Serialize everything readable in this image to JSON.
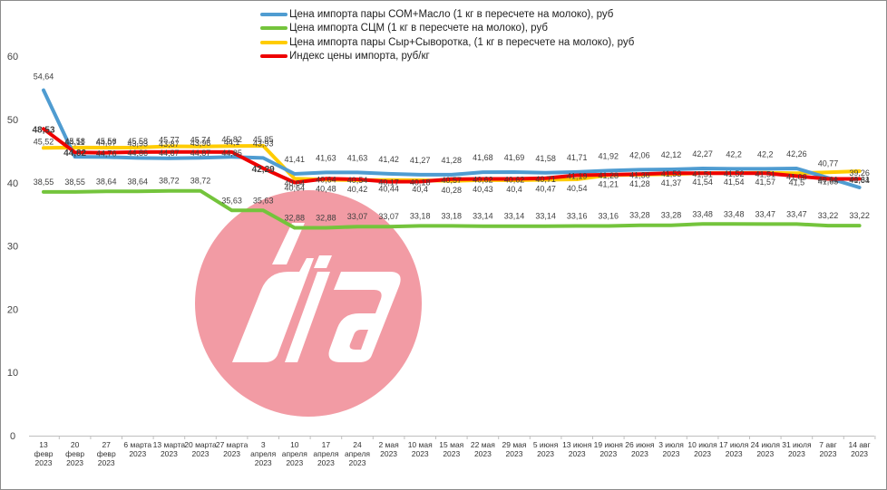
{
  "colors": {
    "background": "#ffffff",
    "series_blue": "#4f9cd1",
    "series_green": "#74c43c",
    "series_yellow": "#ffcc00",
    "series_red": "#ee0000",
    "watermark_disc": "#f29ba4",
    "watermark_text": "#ffffff"
  },
  "watermark": {
    "text": "dia",
    "kind": "logo"
  },
  "chart_data": {
    "type": "line",
    "ylim": [
      0,
      60
    ],
    "yticks": [
      0,
      10,
      20,
      30,
      40,
      50,
      60
    ],
    "grid": false,
    "legend_position": "top-center",
    "categories": [
      "13 февр 2023",
      "20 февр 2023",
      "27 февр 2023",
      "6 марта 2023",
      "13 марта 2023",
      "20 марта 2023",
      "27 марта 2023",
      "3 апреля 2023",
      "10 апреля 2023",
      "17 апреля 2023",
      "24 апреля 2023",
      "2 мая 2023",
      "10 мая 2023",
      "15 мая 2023",
      "22 мая 2023",
      "29 мая 2023",
      "5 июня 2023",
      "13 июня 2023",
      "19 июня 2023",
      "26 июня 2023",
      "3 июля 2023",
      "10 июля 2023",
      "17 июля 2023",
      "24 июля 2023",
      "31 июля 2023",
      "7 авг 2023",
      "14 авг 2023"
    ],
    "series": [
      {
        "name": "Цена импорта пары СОМ+Масло (1 кг в пересчете на молоко), руб",
        "color": "#4f9cd1",
        "values": [
          54.64,
          44.11,
          44.07,
          43.93,
          43.87,
          43.96,
          44.1,
          43.93,
          41.41,
          41.63,
          41.63,
          41.42,
          41.27,
          41.28,
          41.68,
          41.69,
          41.58,
          41.71,
          41.92,
          42.06,
          42.12,
          42.27,
          42.2,
          42.2,
          42.26,
          40.77,
          39.26
        ],
        "labels": [
          "54,64",
          "44,11",
          "44,07",
          "43,93",
          "43,87",
          "43,96",
          "44,1",
          "43,93",
          "41,41",
          "41,63",
          "41,63",
          "41,42",
          "41,27",
          "41,28",
          "41,68",
          "41,69",
          "41,58",
          "41,71",
          "41,92",
          "42,06",
          "42,12",
          "42,27",
          "42,2",
          "42,2",
          "42,26",
          "40,77",
          "39,26"
        ]
      },
      {
        "name": "Цена импорта СЦМ (1 кг в пересчете на молоко), руб",
        "color": "#74c43c",
        "values": [
          38.55,
          38.55,
          38.64,
          38.64,
          38.72,
          38.72,
          35.63,
          35.63,
          32.88,
          32.88,
          33.07,
          33.07,
          33.18,
          33.18,
          33.14,
          33.14,
          33.14,
          33.16,
          33.16,
          33.28,
          33.28,
          33.48,
          33.48,
          33.47,
          33.47,
          33.22,
          33.22
        ],
        "labels": [
          "38,55",
          "38,55",
          "38,64",
          "38,64",
          "38,72",
          "38,72",
          "35,63",
          "35,63",
          "32,88",
          "32,88",
          "33,07",
          "33,07",
          "33,18",
          "33,18",
          "33,14",
          "33,14",
          "33,14",
          "33,16",
          "33,16",
          "33,28",
          "33,28",
          "33,48",
          "33,48",
          "33,47",
          "33,47",
          "33,22",
          "33,22"
        ]
      },
      {
        "name": "Цена импорта пары Сыр+Сыворотка, (1 кг в пересчете на молоко), руб",
        "color": "#ffcc00",
        "values": [
          45.52,
          45.58,
          45.56,
          45.58,
          45.77,
          45.74,
          45.82,
          45.85,
          40.64,
          40.48,
          40.42,
          40.44,
          40.4,
          40.28,
          40.43,
          40.4,
          40.47,
          40.54,
          41.21,
          41.28,
          41.37,
          41.54,
          41.54,
          41.57,
          41.5,
          41.65,
          41.84
        ],
        "labels": [
          "45,52",
          "45,58",
          "45,56",
          "45,58",
          "45,77",
          "45,74",
          "45,82",
          "45,85",
          "40,64",
          "40,48",
          "40,42",
          "40,44",
          "40,4",
          "40,28",
          "40,43",
          "40,4",
          "40,47",
          "40,54",
          "41,21",
          "41,28",
          "41,37",
          "41,54",
          "41,54",
          "41,57",
          "41,5",
          "41,65",
          "41,84"
        ]
      },
      {
        "name": "Индекс цены импорта, руб/кг",
        "color": "#ee0000",
        "values": [
          48.53,
          44.82,
          44.76,
          44.86,
          44.87,
          44.87,
          44.85,
          42.29,
          40.04,
          40.64,
          40.54,
          40.17,
          40.18,
          40.57,
          40.62,
          40.62,
          40.71,
          41.19,
          41.28,
          41.36,
          41.53,
          41.51,
          41.52,
          41.51,
          41.06,
          40.61,
          40.61
        ],
        "labels": [
          "48,53",
          "44,82",
          "44,76",
          "44,86",
          "44,87",
          "44,87",
          "44,85",
          "42,29",
          "40,04",
          "40,64",
          "40,54",
          "40,17",
          "40,18",
          "40,57",
          "40,62",
          "40,62",
          "40,71",
          "41,19",
          "41,28",
          "41,36",
          "41,53",
          "41,51",
          "41,52",
          "41,51",
          "41,06",
          "40,61",
          "40,61"
        ]
      }
    ]
  }
}
